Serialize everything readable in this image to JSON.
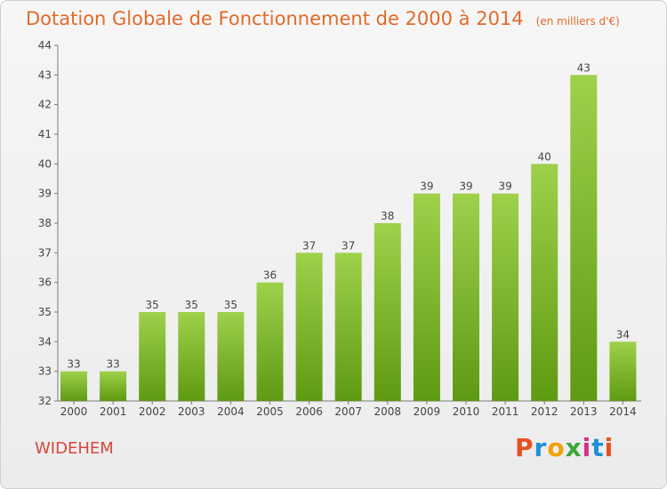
{
  "header": {
    "title": "Dotation Globale de Fonctionnement de 2000 à 2014",
    "unit": "(en milliers d'€)"
  },
  "commune": "WIDEHEM",
  "logo_text": "Proxiti",
  "colors": {
    "title": "#e36a2a",
    "bar_top": "#9fd14b",
    "bar_bottom": "#5e9a12",
    "commune": "#d9473c"
  },
  "chart_data": {
    "type": "bar",
    "title": "Dotation Globale de Fonctionnement de 2000 à 2014",
    "xlabel": "",
    "ylabel": "",
    "categories": [
      "2000",
      "2001",
      "2002",
      "2003",
      "2004",
      "2005",
      "2006",
      "2007",
      "2008",
      "2009",
      "2010",
      "2011",
      "2012",
      "2013",
      "2014"
    ],
    "values": [
      33,
      33,
      35,
      35,
      35,
      36,
      37,
      37,
      38,
      39,
      39,
      39,
      40,
      43,
      34
    ],
    "ylim": [
      32,
      44
    ],
    "yticks": [
      32,
      33,
      34,
      35,
      36,
      37,
      38,
      39,
      40,
      41,
      42,
      43,
      44
    ],
    "grid": false,
    "legend": "none"
  }
}
